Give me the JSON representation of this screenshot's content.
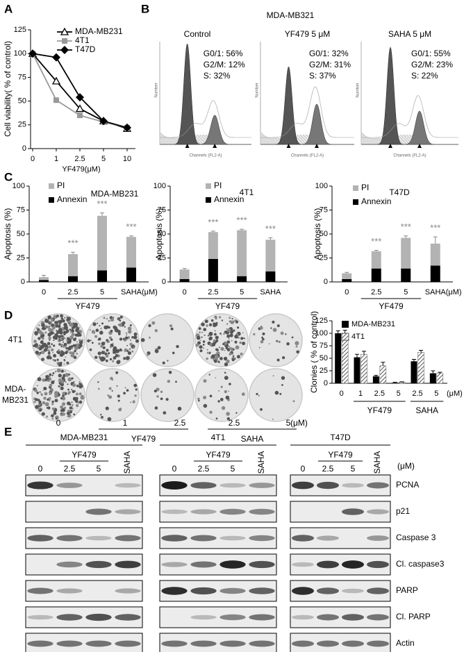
{
  "panel_labels": [
    "A",
    "B",
    "C",
    "D",
    "E"
  ],
  "chart_data": [
    {
      "type": "line",
      "x_label": "YF479(μM)",
      "y_label": "Cell viability( % of control)",
      "categories": [
        "0",
        "1",
        "2.5",
        "5",
        "10"
      ],
      "ylim": [
        0,
        125
      ],
      "yticks": [
        0,
        25,
        50,
        75,
        100,
        125
      ],
      "grid": false,
      "series": [
        {
          "name": "MDA-MB231",
          "color": "#000000",
          "marker": "triangle-open",
          "values": [
            100,
            71,
            42,
            29,
            21
          ]
        },
        {
          "name": "4T1",
          "color": "#999999",
          "marker": "square",
          "values": [
            100,
            51,
            35,
            28,
            22
          ]
        },
        {
          "name": "T47D",
          "color": "#000000",
          "marker": "diamond",
          "values": [
            100,
            96,
            54,
            29,
            22
          ]
        }
      ]
    },
    {
      "type": "stacked_bar",
      "title": "MDA-MB231",
      "y_label": "Apoptosis (%)",
      "categories": [
        "0",
        "2.5",
        "5",
        "SAHA"
      ],
      "group_label": "YF479",
      "unit_label": "(μM)",
      "ylim": [
        0,
        100
      ],
      "yticks": [
        0,
        25,
        50,
        75,
        100
      ],
      "annotations": [
        null,
        "***",
        "***",
        "***"
      ],
      "series": [
        {
          "name": "Annexin",
          "color": "#000000",
          "values": [
            2,
            6,
            12,
            15
          ],
          "errors": [
            1,
            1,
            2,
            2
          ]
        },
        {
          "name": "PI",
          "color": "#b3b3b3",
          "values": [
            3,
            23,
            57,
            32
          ],
          "errors": [
            2,
            2,
            3,
            1
          ]
        }
      ]
    },
    {
      "type": "stacked_bar",
      "title": "4T1",
      "y_label": "Apoptosis (%)",
      "categories": [
        "0",
        "2.5",
        "5",
        "SAHA"
      ],
      "group_label": "YF479",
      "ylim": [
        0,
        100
      ],
      "yticks": [
        0,
        25,
        50,
        75,
        100
      ],
      "annotations": [
        null,
        "***",
        "***",
        "***"
      ],
      "series": [
        {
          "name": "Annexin",
          "color": "#000000",
          "values": [
            3,
            24,
            6,
            11
          ],
          "errors": [
            1,
            1,
            1,
            1
          ]
        },
        {
          "name": "PI",
          "color": "#b3b3b3",
          "values": [
            10,
            28,
            48,
            33
          ],
          "errors": [
            1,
            1,
            1,
            2
          ]
        }
      ]
    },
    {
      "type": "stacked_bar",
      "title": "T47D",
      "y_label": "Apoptosis (%)",
      "categories": [
        "0",
        "2.5",
        "5",
        "SAHA"
      ],
      "group_label": "YF479",
      "unit_label": "(μM)",
      "ylim": [
        0,
        100
      ],
      "yticks": [
        0,
        25,
        50,
        75,
        100
      ],
      "annotations": [
        null,
        "***",
        "***",
        "***"
      ],
      "series": [
        {
          "name": "Annexin",
          "color": "#000000",
          "values": [
            3,
            14,
            14,
            17
          ],
          "errors": [
            1,
            2,
            2,
            2
          ]
        },
        {
          "name": "PI",
          "color": "#b3b3b3",
          "values": [
            6,
            18,
            32,
            23
          ],
          "errors": [
            1,
            1,
            2,
            7
          ]
        }
      ]
    },
    {
      "type": "grouped_bar",
      "y_label": "Clonies ( % of control)",
      "categories": [
        "0",
        "1",
        "2.5",
        "5",
        "2.5",
        "5"
      ],
      "group_labels": [
        "YF479",
        "SAHA"
      ],
      "unit_label": "(μM)",
      "ylim": [
        0,
        125
      ],
      "yticks": [
        0,
        25,
        50,
        75,
        100,
        125
      ],
      "series": [
        {
          "name": "MDA-MB231",
          "color": "#000000",
          "hatch": false,
          "values": [
            100,
            52,
            14,
            1,
            44,
            20
          ],
          "errors": [
            5,
            6,
            2,
            1,
            4,
            5
          ]
        },
        {
          "name": "4T1",
          "color": "#555555",
          "hatch": true,
          "values": [
            100,
            58,
            35,
            2,
            62,
            20
          ],
          "errors": [
            6,
            6,
            7,
            1,
            4,
            2
          ]
        }
      ]
    }
  ],
  "flow_cytometry": {
    "title": "MDA-MB321",
    "x_axis_label": "Channels (FL2-A)",
    "y_axis_label": "Number",
    "panels": [
      {
        "title": "Control",
        "stats": [
          "G0/1: 56%",
          "G2/M: 12%",
          "S: 32%"
        ]
      },
      {
        "title": "YF479 5 μM",
        "stats": [
          "G0/1: 32%",
          "G2/M: 31%",
          "S: 37%"
        ]
      },
      {
        "title": "SAHA 5 μM",
        "stats": [
          "G0/1: 55%",
          "G2/M: 23%",
          "S: 22%"
        ]
      }
    ]
  },
  "colony_assay": {
    "row_labels": [
      [
        "4T1"
      ],
      [
        "MDA-",
        "MB231"
      ]
    ],
    "categories": [
      "0",
      "1",
      "2.5",
      "2.5",
      "5"
    ],
    "group_labels": [
      "YF479",
      "SAHA"
    ],
    "unit_label": "(μM)"
  },
  "western_blot": {
    "cell_lines": [
      "MDA-MB231",
      "4T1",
      "T47D"
    ],
    "lanes": [
      "0",
      "2.5",
      "5",
      "SAHA"
    ],
    "group_label": "YF479",
    "unit_label": "(μM)",
    "proteins": [
      "PCNA",
      "p21",
      "Caspase 3",
      "Cl. caspase3",
      "PARP",
      "Cl. PARP",
      "Actin"
    ]
  }
}
